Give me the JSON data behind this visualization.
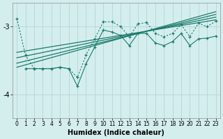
{
  "xlabel": "Humidex (Indice chaleur)",
  "bg_color": "#d4eeee",
  "grid_color": "#b8d8d8",
  "line_color": "#1a7a6a",
  "xlim": [
    -0.5,
    23.5
  ],
  "ylim": [
    -4.35,
    -2.65
  ],
  "yticks": [
    -4,
    -3
  ],
  "xticks": [
    0,
    1,
    2,
    3,
    4,
    5,
    6,
    7,
    8,
    9,
    10,
    11,
    12,
    13,
    14,
    15,
    16,
    17,
    18,
    19,
    20,
    21,
    22,
    23
  ],
  "line1_x": [
    0,
    1,
    2,
    3,
    4,
    5,
    6,
    7,
    8,
    9,
    10,
    11,
    12,
    13,
    14,
    15,
    16,
    17,
    18,
    19,
    20,
    21,
    22,
    23
  ],
  "line1_y": [
    -2.88,
    -3.42,
    -3.62,
    -3.62,
    -3.62,
    -3.6,
    -3.62,
    -3.75,
    -3.42,
    -3.18,
    -2.93,
    -2.93,
    -3.0,
    -3.15,
    -2.96,
    -2.94,
    -3.1,
    -3.15,
    -3.1,
    -2.97,
    -3.15,
    -2.95,
    -3.0,
    -2.92
  ],
  "line2_x": [
    1,
    2,
    3,
    4,
    5,
    6,
    7,
    8,
    9,
    10,
    11,
    12,
    13,
    14,
    15,
    16,
    17,
    18,
    19,
    20,
    21,
    22,
    23
  ],
  "line2_y": [
    -3.62,
    -3.62,
    -3.62,
    -3.62,
    -3.6,
    -3.62,
    -3.88,
    -3.55,
    -3.3,
    -3.05,
    -3.08,
    -3.13,
    -3.28,
    -3.1,
    -3.1,
    -3.24,
    -3.28,
    -3.22,
    -3.1,
    -3.28,
    -3.18,
    -3.17,
    -3.14
  ],
  "linear_lines": [
    {
      "x0": 0,
      "x1": 23,
      "y0": -3.38,
      "y1": -2.9
    },
    {
      "x0": 0,
      "x1": 23,
      "y0": -3.46,
      "y1": -2.86
    },
    {
      "x0": 0,
      "x1": 23,
      "y0": -3.54,
      "y1": -2.82
    },
    {
      "x0": 0,
      "x1": 23,
      "y0": -3.6,
      "y1": -2.78
    }
  ]
}
